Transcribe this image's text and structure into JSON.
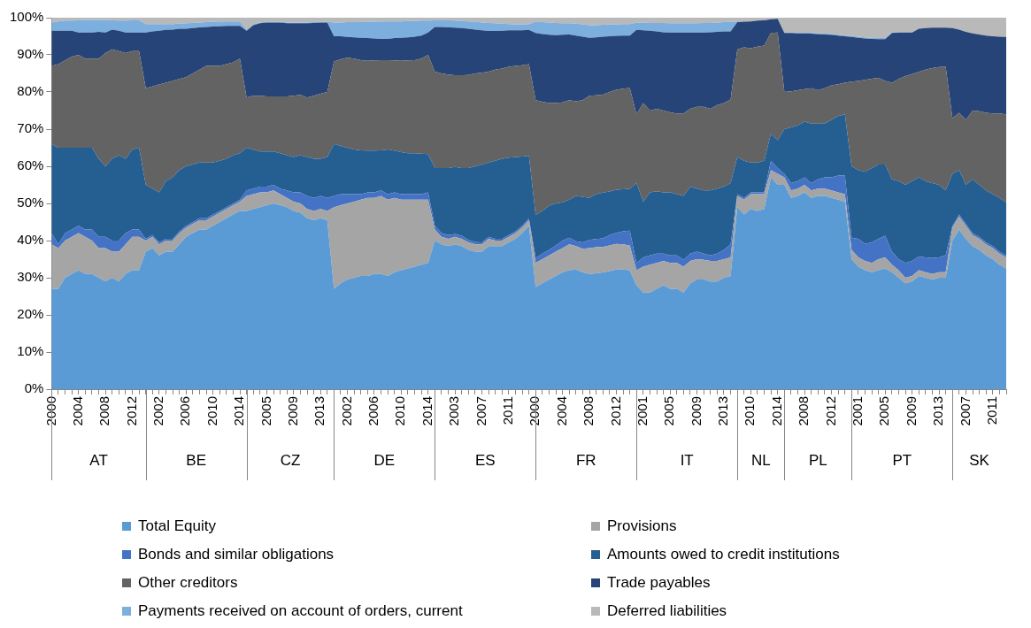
{
  "chart_data": {
    "type": "area",
    "stacked": true,
    "legend": "bottom",
    "grid": false,
    "categories": [
      "2000",
      null,
      null,
      null,
      "2004",
      null,
      null,
      null,
      "2008",
      null,
      null,
      null,
      "2012",
      null,
      null,
      null,
      "2002",
      null,
      null,
      null,
      "2006",
      null,
      null,
      null,
      "2010",
      null,
      null,
      null,
      "2014",
      null,
      null,
      null,
      "2005",
      null,
      null,
      null,
      "2009",
      null,
      null,
      null,
      "2013",
      null,
      null,
      null,
      "2002",
      null,
      null,
      null,
      "2006",
      null,
      null,
      null,
      "2010",
      null,
      null,
      null,
      "2014",
      null,
      null,
      null,
      "2003",
      null,
      null,
      null,
      "2007",
      null,
      null,
      null,
      "2011",
      null,
      null,
      null,
      "2000",
      null,
      null,
      null,
      "2004",
      null,
      null,
      null,
      "2008",
      null,
      null,
      null,
      "2012",
      null,
      null,
      null,
      "2001",
      null,
      null,
      null,
      "2005",
      null,
      null,
      null,
      "2009",
      null,
      null,
      null,
      "2013",
      null,
      null,
      null,
      "2010",
      null,
      null,
      null,
      "2014",
      null,
      null,
      null,
      "2008",
      null,
      null,
      null,
      "2012",
      null,
      null,
      null,
      "2001",
      null,
      null,
      null,
      "2005",
      null,
      null,
      null,
      "2009",
      null,
      null,
      null,
      "2013",
      null,
      null,
      null,
      "2007",
      null,
      null,
      null,
      "2011",
      null,
      null
    ],
    "annotations": [
      "AT",
      "BE",
      "CZ",
      "DE",
      "ES",
      "FR",
      "IT",
      "NL",
      "PL",
      "PT",
      "SK"
    ],
    "ylim": [
      0,
      100
    ],
    "yticks": [
      {
        "value": 0,
        "label": "0%"
      },
      {
        "value": 10,
        "label": "10%"
      },
      {
        "value": 20,
        "label": "20%"
      },
      {
        "value": 30,
        "label": "30%"
      },
      {
        "value": 40,
        "label": "40%"
      },
      {
        "value": 50,
        "label": "50%"
      },
      {
        "value": 60,
        "label": "60%"
      },
      {
        "value": 70,
        "label": "70%"
      },
      {
        "value": 80,
        "label": "80%"
      },
      {
        "value": 90,
        "label": "90%"
      },
      {
        "value": 100,
        "label": "100%"
      }
    ],
    "series": [
      {
        "name": "Total Equity",
        "color": "#5b9bd5",
        "values": [
          27,
          27,
          30,
          31,
          32,
          31,
          31,
          30,
          29,
          30,
          29,
          31,
          32,
          32,
          37,
          38,
          36,
          37,
          37,
          39,
          41,
          42,
          43,
          43,
          44,
          45,
          46,
          47,
          48,
          48,
          48.5,
          49,
          49.5,
          50,
          49.5,
          49,
          48,
          47.5,
          46,
          45.5,
          46,
          45.5,
          27,
          28.5,
          29.5,
          30,
          30.5,
          30.5,
          31,
          31,
          30.5,
          31.5,
          32,
          32.5,
          33,
          33.5,
          34,
          40,
          39,
          38.5,
          39,
          38.5,
          37.5,
          37,
          37,
          38.5,
          38.5,
          38.5,
          39.5,
          40.5,
          42,
          44,
          27.5,
          28.5,
          29.5,
          30.5,
          31.5,
          32,
          32.2,
          31.5,
          31,
          31.2,
          31.4,
          31.8,
          32.2,
          32.2,
          32,
          28,
          26,
          26,
          27,
          28,
          27,
          27,
          26,
          28.5,
          29.5,
          29.5,
          29,
          29,
          30,
          30.5,
          49,
          47,
          48.5,
          48,
          48.5,
          57,
          55,
          55,
          51.5,
          52,
          53,
          51.5,
          52,
          52,
          51.5,
          51,
          50.5,
          35,
          33,
          32,
          31.5,
          32,
          32.5,
          31.5,
          30,
          28.5,
          29,
          30.5,
          30,
          29.5,
          30,
          30,
          40,
          43,
          40.5,
          38.5,
          37.5,
          36,
          35,
          33.5,
          32.5
        ]
      },
      {
        "name": "Provisions",
        "color": "#a5a5a5",
        "values": [
          12,
          11,
          10,
          10,
          10,
          10,
          9,
          8,
          9,
          7,
          8,
          8,
          9,
          9,
          3,
          3,
          3,
          3,
          3,
          3,
          2.5,
          2.5,
          2.5,
          2.5,
          2.5,
          2.5,
          2.5,
          2.5,
          2.5,
          4,
          4,
          4,
          3.5,
          3.5,
          3,
          2.5,
          2.5,
          2.5,
          2.5,
          2.5,
          2.5,
          2.5,
          22,
          21,
          20.5,
          20.5,
          20.5,
          21,
          20.5,
          21,
          20.5,
          20,
          19,
          18.5,
          18,
          17.5,
          17,
          3,
          2,
          2,
          2,
          2,
          2,
          2,
          2,
          2,
          1.5,
          1.5,
          1.5,
          1.5,
          1.5,
          1.5,
          6.5,
          6.5,
          6.5,
          6.5,
          6.5,
          7,
          6.3,
          6.3,
          7,
          7,
          6.9,
          6.9,
          6.9,
          6.8,
          6.7,
          4,
          7,
          7.5,
          7,
          6.5,
          7,
          7,
          7,
          6,
          5.5,
          5.3,
          5.5,
          5.5,
          5,
          5,
          3,
          4,
          4,
          4.5,
          4,
          2,
          3,
          2,
          2,
          2,
          2,
          2,
          2,
          2,
          2,
          2,
          2,
          2.5,
          2.5,
          2.5,
          2.5,
          3,
          3,
          2,
          2,
          1.5,
          1.5,
          1.5,
          1.5,
          1.5,
          1.5,
          1.5,
          3.5,
          3.5,
          3.5,
          3,
          3,
          3,
          3,
          3,
          3
        ]
      },
      {
        "name": "Bonds and similar obligations",
        "color": "#4472c4",
        "values": [
          3,
          1,
          2,
          2,
          2,
          2,
          3,
          3,
          3,
          3,
          3,
          3,
          2,
          2,
          0.5,
          0.5,
          0.5,
          0.5,
          0.5,
          0.5,
          0.5,
          0.5,
          0.5,
          0.5,
          0.5,
          0.5,
          0.5,
          0.5,
          0.5,
          1.5,
          1.5,
          1.5,
          1.5,
          1.5,
          1.5,
          2,
          2.5,
          3,
          3.5,
          3.5,
          3.5,
          3.5,
          3,
          3,
          2.5,
          2,
          1.5,
          1.5,
          1.5,
          1.5,
          1.5,
          1.5,
          1.5,
          1.5,
          1.5,
          1.5,
          2,
          1,
          1,
          1,
          0.8,
          0.8,
          0.7,
          0.6,
          0.5,
          0.5,
          0.5,
          0.5,
          0.5,
          0.5,
          0.5,
          0.5,
          1.3,
          1.5,
          1.5,
          1.7,
          2,
          1.8,
          1.3,
          1.7,
          2.2,
          2.2,
          2.3,
          2.8,
          3,
          3.5,
          4,
          2,
          2.5,
          2.5,
          2.5,
          2,
          2,
          2,
          1.8,
          2,
          2,
          1.7,
          1.5,
          2,
          2.5,
          3.5,
          0.5,
          0.5,
          0.5,
          0.5,
          0.5,
          2.5,
          1.5,
          1,
          2,
          2,
          2,
          2,
          2.5,
          3,
          3.5,
          4.5,
          5,
          3.3,
          5,
          4.6,
          5.5,
          5.5,
          5.8,
          3.5,
          3,
          4,
          4,
          3.7,
          4,
          4.3,
          4,
          4.6,
          0.5,
          0.5,
          0.5,
          0.5,
          0.5,
          0.5,
          0.5,
          0.5,
          0.5
        ]
      },
      {
        "name": "Amounts owed to credit institutions",
        "color": "#255e91",
        "values": [
          24,
          26,
          23,
          22,
          21,
          22,
          22,
          21,
          19,
          22,
          23,
          20,
          21.5,
          22,
          14.5,
          12.5,
          13.5,
          15.5,
          16.5,
          16.5,
          16,
          15.5,
          15,
          15,
          14,
          13.5,
          13,
          13,
          12.5,
          11.5,
          10.5,
          9.5,
          9.5,
          9,
          9.5,
          9.5,
          9.5,
          10,
          10.5,
          10.5,
          10,
          11,
          14,
          13,
          12.5,
          12,
          11.8,
          11.2,
          11.2,
          10.8,
          12,
          11.2,
          11.3,
          11,
          11,
          10.9,
          10.3,
          15.5,
          17.5,
          18,
          18,
          18.2,
          19.3,
          20.4,
          21,
          20,
          21,
          21.5,
          20.8,
          20,
          18.6,
          16.8,
          11.6,
          11.5,
          11.9,
          11.3,
          10.3,
          10.2,
          12.2,
          12.3,
          11.3,
          12.1,
          12.3,
          11.7,
          11.6,
          11.3,
          11.2,
          21.5,
          15,
          17,
          16.8,
          16.5,
          17,
          16.5,
          17.2,
          18,
          17,
          17,
          17.5,
          17.5,
          17,
          16.5,
          10,
          10,
          8,
          8,
          8.5,
          7.3,
          7.5,
          12,
          15,
          15,
          15,
          16,
          15,
          14.5,
          15.5,
          16,
          16.5,
          19.2,
          18.5,
          19.4,
          20,
          20,
          19.2,
          19.5,
          21,
          21,
          21.5,
          21.3,
          20.5,
          20.2,
          19.5,
          17.4,
          14,
          12,
          10.5,
          14.5,
          14,
          14,
          14,
          14.5,
          14.3
        ]
      },
      {
        "name": "Other creditors",
        "color": "#636363",
        "values": [
          21,
          22.5,
          23.5,
          24.5,
          25,
          24,
          24,
          27,
          30.5,
          29.5,
          28,
          28.5,
          26.5,
          26,
          26,
          27.5,
          29,
          26.5,
          26,
          24.5,
          24,
          24.5,
          25,
          26,
          26,
          25.5,
          25.5,
          25,
          25.5,
          13.5,
          14.5,
          15,
          14.8,
          14.8,
          15.3,
          15.8,
          16.5,
          16.2,
          16,
          17,
          17.5,
          17.5,
          22.2,
          23.3,
          24.2,
          24.5,
          24.3,
          24.2,
          24.3,
          24.3,
          24.1,
          24.3,
          24.6,
          25,
          25.1,
          25.6,
          26.7,
          26,
          25.5,
          25.2,
          24.7,
          25,
          25.1,
          25,
          24.7,
          24.5,
          24.5,
          24.3,
          24.5,
          24.5,
          24.6,
          24.7,
          30.9,
          29.4,
          27.6,
          27,
          26.9,
          26.8,
          25.5,
          26,
          27.5,
          26.6,
          26.4,
          26.8,
          26.9,
          27.1,
          27.2,
          18.5,
          26.5,
          22,
          22.2,
          22,
          21.5,
          21.7,
          22.2,
          21,
          22,
          22.5,
          22,
          22.5,
          22.5,
          22.5,
          29,
          30.5,
          30.8,
          31.2,
          31,
          27.1,
          29,
          10,
          9.7,
          9.5,
          8.8,
          9.5,
          9,
          9.5,
          9.3,
          8.6,
          8.5,
          22.8,
          24,
          24.8,
          24.1,
          23.3,
          22.5,
          26,
          27.5,
          29.3,
          28.8,
          28.4,
          30,
          30.9,
          31.7,
          33.3,
          15,
          15.4,
          17.5,
          18.5,
          19.8,
          20.9,
          21.7,
          22.7,
          23.7
        ]
      },
      {
        "name": "Trade payables",
        "color": "#264478",
        "values": [
          9.5,
          9,
          8,
          7,
          6,
          7,
          7,
          7.2,
          5.5,
          5.3,
          5.5,
          5.5,
          5,
          5,
          15,
          14.8,
          14.5,
          14.2,
          13.8,
          13.5,
          13,
          12.2,
          11.4,
          10.5,
          10.6,
          10.7,
          10.3,
          9.8,
          8.8,
          18,
          19,
          19.5,
          19.9,
          19.9,
          19.9,
          19.7,
          19.5,
          19.3,
          20,
          19.6,
          19.2,
          18.7,
          6.8,
          6.2,
          5.6,
          5.7,
          6,
          6.1,
          5.9,
          5.7,
          5.7,
          6,
          6.2,
          6.2,
          6.3,
          6.2,
          6,
          12,
          12.5,
          12.7,
          12.8,
          12.7,
          12.4,
          11.8,
          11.4,
          10.9,
          10.4,
          10.2,
          9.8,
          9.6,
          9.4,
          9.2,
          18.1,
          18.2,
          18.4,
          18.3,
          18.2,
          17.7,
          17.7,
          17.1,
          15.6,
          15.6,
          15.6,
          15,
          14.5,
          14.3,
          14.1,
          22.7,
          19.6,
          21.5,
          20.8,
          21.1,
          21.5,
          21.8,
          21.8,
          20.5,
          20,
          20,
          20.6,
          19.7,
          19.3,
          18.3,
          7.3,
          6.9,
          7.2,
          7,
          6.8,
          3.7,
          3.7,
          15.9,
          15.7,
          15.3,
          15,
          14.7,
          15.1,
          14.5,
          13.6,
          13.1,
          12.5,
          12,
          11.6,
          11.1,
          10.7,
          10.4,
          11.2,
          13.4,
          12.5,
          11.7,
          11.2,
          11.6,
          11.2,
          10.9,
          10.6,
          10.5,
          24.2,
          22.4,
          23.7,
          20.8,
          20.7,
          20.8,
          20.8,
          20.7,
          20.8
        ]
      },
      {
        "name": "Payments received on account of orders, current",
        "color": "#7cafdd",
        "values": [
          2.2,
          2.5,
          2.7,
          2.7,
          3.3,
          3.4,
          3.4,
          3.2,
          3.4,
          2.5,
          2.7,
          3.2,
          3.3,
          3.3,
          2.3,
          2,
          1.8,
          1.6,
          1.5,
          1.4,
          1.5,
          1.4,
          1.3,
          1.3,
          1.3,
          1.3,
          1.2,
          1.2,
          1.2,
          0.2,
          0.2,
          0.2,
          0.2,
          0.2,
          0.2,
          0.2,
          0.2,
          0.2,
          0.2,
          0.2,
          0.2,
          0.2,
          3.7,
          3.7,
          4,
          4.1,
          4.2,
          4.4,
          4.5,
          4.7,
          4.7,
          4.5,
          4.4,
          4.4,
          4.2,
          4,
          3.2,
          1.8,
          1.8,
          1.9,
          1.9,
          1.9,
          2,
          2.1,
          2.1,
          2.2,
          2.1,
          1.9,
          1.7,
          1.6,
          1.6,
          1.6,
          3,
          3.2,
          3.3,
          3.3,
          3.1,
          3,
          3.2,
          3.3,
          3.4,
          3.3,
          3.2,
          3.2,
          3.1,
          3.1,
          3.1,
          2,
          2.1,
          2.1,
          2.3,
          2.5,
          2.5,
          2.5,
          2.5,
          2.5,
          2.5,
          2.6,
          2.5,
          2.5,
          2.5,
          2.6,
          0,
          0,
          0,
          0,
          0,
          0,
          0,
          0.2,
          0.1,
          0.2,
          0.2,
          0.2,
          0.2,
          0.2,
          0.2,
          0.2,
          0.2,
          0.3,
          0.3,
          0.3,
          0.3,
          0.3,
          0.3,
          0.1,
          0.1,
          0.1,
          0.1,
          0,
          0,
          0,
          0,
          0,
          0,
          0,
          0,
          0,
          0,
          0,
          0,
          0,
          0
        ]
      },
      {
        "name": "Deferred liabilities",
        "color": "#b9b9b9",
        "values": [
          1.3,
          1,
          0.8,
          0.8,
          0.7,
          0.6,
          0.6,
          0.6,
          0.6,
          0.7,
          0.8,
          0.8,
          0.7,
          0.7,
          1.7,
          1.7,
          1.7,
          1.7,
          1.7,
          1.6,
          1.5,
          1.4,
          1.3,
          1.2,
          1.1,
          1,
          1,
          1,
          1,
          3.3,
          1.8,
          1.3,
          1.1,
          1.1,
          1.1,
          1.3,
          1.3,
          1.3,
          1.3,
          1.2,
          1.1,
          1.1,
          1.3,
          1.3,
          1.2,
          1.2,
          1.2,
          1.1,
          1.1,
          1,
          1,
          1,
          1,
          0.9,
          0.9,
          0.8,
          0.8,
          0.7,
          0.7,
          0.7,
          0.8,
          0.9,
          1,
          1.1,
          1.3,
          1.4,
          1.5,
          1.6,
          1.7,
          1.8,
          1.8,
          1.7,
          1.1,
          1.2,
          1.3,
          1.4,
          1.5,
          1.5,
          1.6,
          1.8,
          2,
          2,
          1.9,
          1.8,
          1.8,
          1.7,
          1.7,
          1.3,
          1.3,
          1.4,
          1.4,
          1.4,
          1.5,
          1.5,
          1.5,
          1.5,
          1.5,
          1.4,
          1.4,
          1.3,
          1.2,
          1.1,
          1.2,
          1.1,
          1,
          0.8,
          0.7,
          0.4,
          0.3,
          3.9,
          4,
          4,
          4,
          4.1,
          4.2,
          4.3,
          4.4,
          4.6,
          4.8,
          4.9,
          5.1,
          5.3,
          5.4,
          5.5,
          5.5,
          4,
          3.9,
          3.9,
          3.9,
          3,
          2.8,
          2.7,
          2.7,
          2.7,
          2.8,
          3.2,
          3.8,
          4.2,
          4.5,
          4.8,
          5,
          5.1,
          5.2
        ]
      }
    ]
  }
}
